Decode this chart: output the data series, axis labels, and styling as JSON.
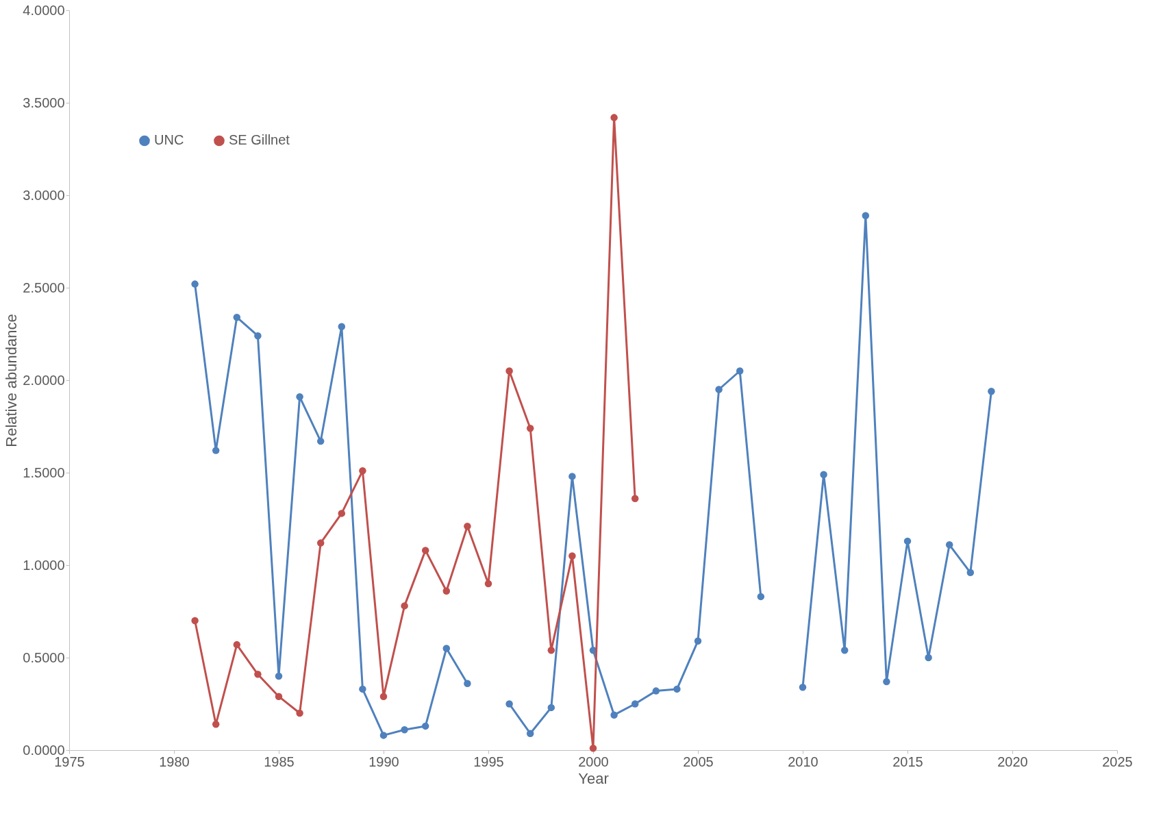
{
  "chart_data": {
    "type": "line",
    "xlabel": "Year",
    "ylabel": "Relative abundance",
    "x": [
      1981,
      1982,
      1983,
      1984,
      1985,
      1986,
      1987,
      1988,
      1989,
      1990,
      1991,
      1992,
      1993,
      1994,
      1995,
      1996,
      1997,
      1998,
      1999,
      2000,
      2001,
      2002,
      2003,
      2004,
      2005,
      2006,
      2007,
      2008,
      2009,
      2010,
      2011,
      2012,
      2013,
      2014,
      2015,
      2016,
      2017,
      2018,
      2019
    ],
    "series": [
      {
        "name": "UNC",
        "color": "#4f81bd",
        "values": [
          2.52,
          1.62,
          2.34,
          2.24,
          0.4,
          1.91,
          1.67,
          2.29,
          0.33,
          0.08,
          0.11,
          0.13,
          0.55,
          0.36,
          null,
          0.25,
          0.09,
          0.23,
          1.48,
          0.54,
          0.19,
          0.25,
          0.32,
          0.33,
          0.59,
          1.95,
          2.05,
          0.83,
          null,
          0.34,
          1.49,
          0.54,
          2.89,
          0.37,
          1.13,
          0.5,
          1.11,
          0.96,
          1.94
        ]
      },
      {
        "name": "SE Gillnet",
        "color": "#c0504d",
        "values": [
          0.7,
          0.14,
          0.57,
          0.41,
          0.29,
          0.2,
          1.12,
          1.28,
          1.51,
          0.29,
          0.78,
          1.08,
          0.86,
          1.21,
          0.9,
          2.05,
          1.74,
          0.54,
          1.05,
          0.01,
          3.42,
          1.36,
          null,
          null,
          null,
          null,
          null,
          null,
          null,
          null,
          null,
          null,
          null,
          null,
          null,
          null,
          null,
          null,
          null
        ]
      }
    ],
    "xlim": [
      1975,
      2025
    ],
    "xticks": [
      1975,
      1980,
      1985,
      1990,
      1995,
      2000,
      2005,
      2010,
      2015,
      2020,
      2025
    ],
    "ylim": [
      0,
      4
    ],
    "yticks": [
      {
        "value": 0,
        "label": "0.0000"
      },
      {
        "value": 0.5,
        "label": "0.5000"
      },
      {
        "value": 1,
        "label": "1.0000"
      },
      {
        "value": 1.5,
        "label": "1.5000"
      },
      {
        "value": 2,
        "label": "2.0000"
      },
      {
        "value": 2.5,
        "label": "2.5000"
      },
      {
        "value": 3,
        "label": "3.0000"
      },
      {
        "value": 3.5,
        "label": "3.5000"
      },
      {
        "value": 4,
        "label": "4.0000"
      }
    ],
    "grid": false,
    "legend": "top left",
    "marker": "circle",
    "line_style": "solid"
  }
}
